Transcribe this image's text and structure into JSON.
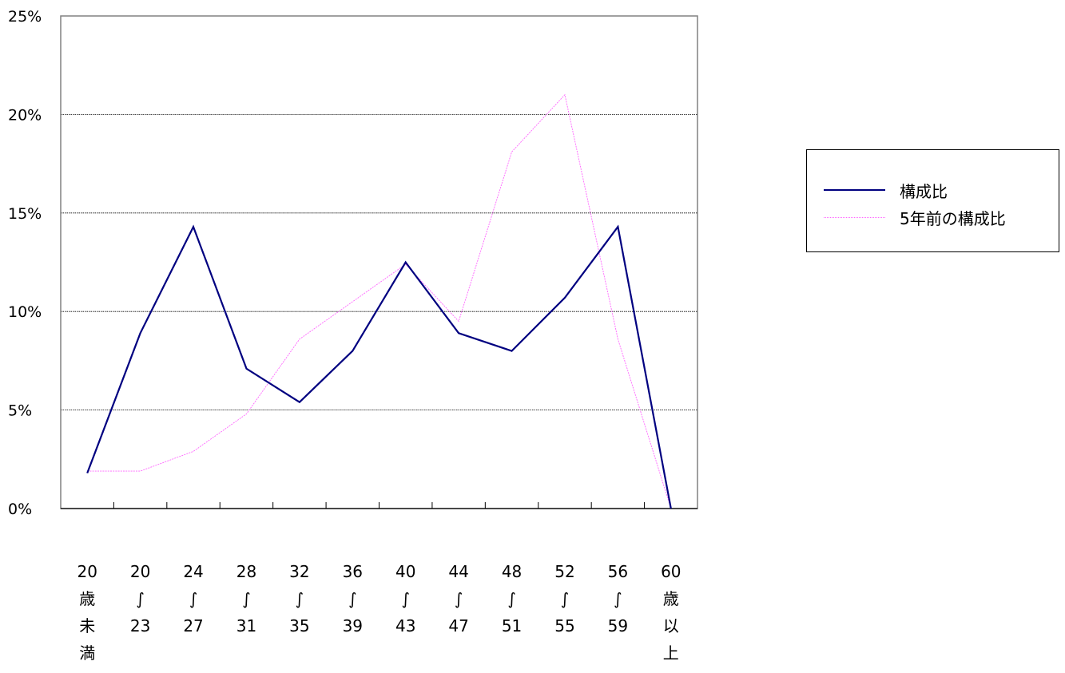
{
  "chart_data": {
    "type": "line",
    "title": "",
    "xlabel": "",
    "ylabel": "",
    "ylim": [
      0,
      25
    ],
    "y_ticks": [
      "0%",
      "5%",
      "10%",
      "15%",
      "20%",
      "25%"
    ],
    "grid": true,
    "legend_position": "right",
    "categories": [
      [
        "20",
        "歳",
        "未",
        "満"
      ],
      [
        "20",
        "∫",
        "23"
      ],
      [
        "24",
        "∫",
        "27"
      ],
      [
        "28",
        "∫",
        "31"
      ],
      [
        "32",
        "∫",
        "35"
      ],
      [
        "36",
        "∫",
        "39"
      ],
      [
        "40",
        "∫",
        "43"
      ],
      [
        "44",
        "∫",
        "47"
      ],
      [
        "48",
        "∫",
        "51"
      ],
      [
        "52",
        "∫",
        "55"
      ],
      [
        "56",
        "∫",
        "59"
      ],
      [
        "60",
        "歳",
        "以",
        "上"
      ]
    ],
    "series": [
      {
        "name": "構成比",
        "color": "#000080",
        "values": [
          1.8,
          8.9,
          14.3,
          7.1,
          5.4,
          8.0,
          12.5,
          8.9,
          8.0,
          10.7,
          14.3,
          0.0
        ]
      },
      {
        "name": "5年前の構成比",
        "color": "#ff66ff",
        "values": [
          1.9,
          1.9,
          2.9,
          4.8,
          8.6,
          10.5,
          12.4,
          9.5,
          18.1,
          21.0,
          8.6,
          0.0
        ]
      }
    ]
  }
}
